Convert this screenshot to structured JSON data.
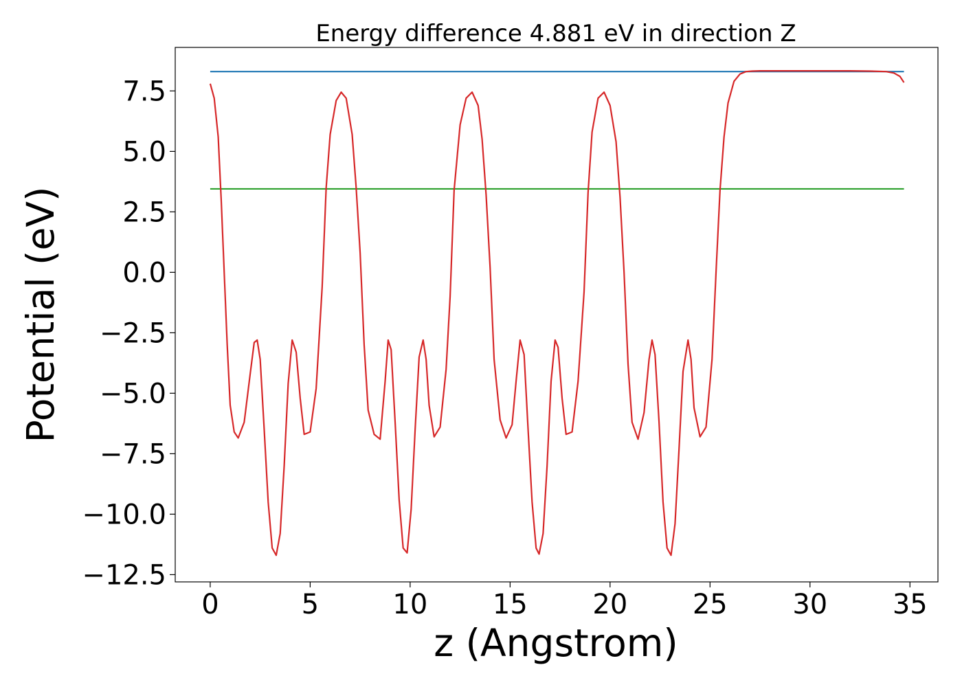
{
  "chart_data": {
    "type": "line",
    "title": "Energy difference 4.881 eV in direction Z",
    "xlabel": "z (Angstrom)",
    "ylabel": "Potential (eV)",
    "xlim": [
      -1.75,
      36.4
    ],
    "ylim": [
      -12.8,
      9.3
    ],
    "x_ticks": [
      0,
      5,
      10,
      15,
      20,
      25,
      30,
      35
    ],
    "x_tick_labels": [
      "0",
      "5",
      "10",
      "15",
      "20",
      "25",
      "30",
      "35"
    ],
    "y_ticks": [
      7.5,
      5.0,
      2.5,
      0.0,
      -2.5,
      -5.0,
      -7.5,
      -10.0,
      -12.5
    ],
    "y_tick_labels": [
      "7.5",
      "5.0",
      "2.5",
      "0.0",
      "−2.5",
      "−5.0",
      "−7.5",
      "−10.0",
      "−12.5"
    ],
    "grid": false,
    "series": [
      {
        "color": "#1f77b4",
        "x": [
          0,
          34.7
        ],
        "y": [
          8.3,
          8.3
        ]
      },
      {
        "color": "#2ca02c",
        "x": [
          0,
          34.7
        ],
        "y": [
          3.45,
          3.45
        ]
      },
      {
        "color": "#d62728",
        "x": [
          0,
          0.2,
          0.4,
          0.55,
          0.7,
          0.85,
          1.0,
          1.2,
          1.4,
          1.7,
          2.0,
          2.2,
          2.35,
          2.5,
          2.7,
          2.9,
          3.1,
          3.3,
          3.5,
          3.7,
          3.9,
          4.1,
          4.3,
          4.5,
          4.7,
          5.0,
          5.3,
          5.6,
          5.8,
          6.0,
          6.3,
          6.55,
          6.8,
          7.1,
          7.3,
          7.5,
          7.7,
          7.9,
          8.2,
          8.5,
          8.75,
          8.9,
          9.05,
          9.25,
          9.45,
          9.65,
          9.85,
          10.05,
          10.25,
          10.45,
          10.65,
          10.8,
          10.95,
          11.2,
          11.5,
          11.8,
          12.0,
          12.2,
          12.5,
          12.8,
          13.1,
          13.4,
          13.6,
          13.8,
          14.0,
          14.2,
          14.5,
          14.8,
          15.1,
          15.3,
          15.5,
          15.7,
          15.9,
          16.1,
          16.3,
          16.45,
          16.65,
          16.85,
          17.05,
          17.25,
          17.4,
          17.6,
          17.8,
          18.1,
          18.4,
          18.7,
          18.9,
          19.1,
          19.4,
          19.7,
          20.0,
          20.3,
          20.5,
          20.7,
          20.9,
          21.1,
          21.4,
          21.7,
          21.95,
          22.1,
          22.25,
          22.45,
          22.65,
          22.85,
          23.05,
          23.25,
          23.45,
          23.65,
          23.9,
          24.05,
          24.2,
          24.5,
          24.8,
          25.1,
          25.3,
          25.5,
          25.7,
          25.9,
          26.2,
          26.5,
          26.8,
          27.1,
          27.5,
          28.0,
          29.0,
          30.0,
          31.0,
          32.0,
          33.0,
          33.8,
          34.2,
          34.5,
          34.7
        ],
        "y": [
          7.8,
          7.2,
          5.6,
          3.0,
          0.0,
          -3.0,
          -5.5,
          -6.6,
          -6.85,
          -6.2,
          -4.2,
          -2.9,
          -2.8,
          -3.6,
          -6.5,
          -9.5,
          -11.4,
          -11.7,
          -10.8,
          -8.0,
          -4.6,
          -2.8,
          -3.3,
          -5.2,
          -6.7,
          -6.6,
          -4.8,
          -0.6,
          3.5,
          5.7,
          7.1,
          7.45,
          7.2,
          5.7,
          3.5,
          0.8,
          -3.0,
          -5.7,
          -6.7,
          -6.9,
          -4.5,
          -2.8,
          -3.2,
          -6.2,
          -9.4,
          -11.4,
          -11.6,
          -9.8,
          -6.5,
          -3.5,
          -2.8,
          -3.6,
          -5.5,
          -6.8,
          -6.4,
          -4.0,
          -1.0,
          3.4,
          6.1,
          7.2,
          7.45,
          6.9,
          5.5,
          3.2,
          0.2,
          -3.6,
          -6.1,
          -6.85,
          -6.3,
          -4.5,
          -2.8,
          -3.4,
          -6.5,
          -9.5,
          -11.4,
          -11.65,
          -10.8,
          -8.0,
          -4.5,
          -2.8,
          -3.1,
          -5.2,
          -6.7,
          -6.6,
          -4.5,
          -0.8,
          3.3,
          5.8,
          7.2,
          7.45,
          6.9,
          5.4,
          3.1,
          0.0,
          -3.8,
          -6.2,
          -6.9,
          -5.8,
          -3.6,
          -2.8,
          -3.4,
          -6.2,
          -9.5,
          -11.4,
          -11.7,
          -10.4,
          -7.3,
          -4.1,
          -2.8,
          -3.6,
          -5.6,
          -6.8,
          -6.4,
          -3.6,
          0.0,
          3.4,
          5.6,
          7.0,
          7.9,
          8.2,
          8.3,
          8.32,
          8.33,
          8.33,
          8.33,
          8.33,
          8.33,
          8.33,
          8.32,
          8.3,
          8.24,
          8.1,
          7.85
        ]
      }
    ]
  }
}
